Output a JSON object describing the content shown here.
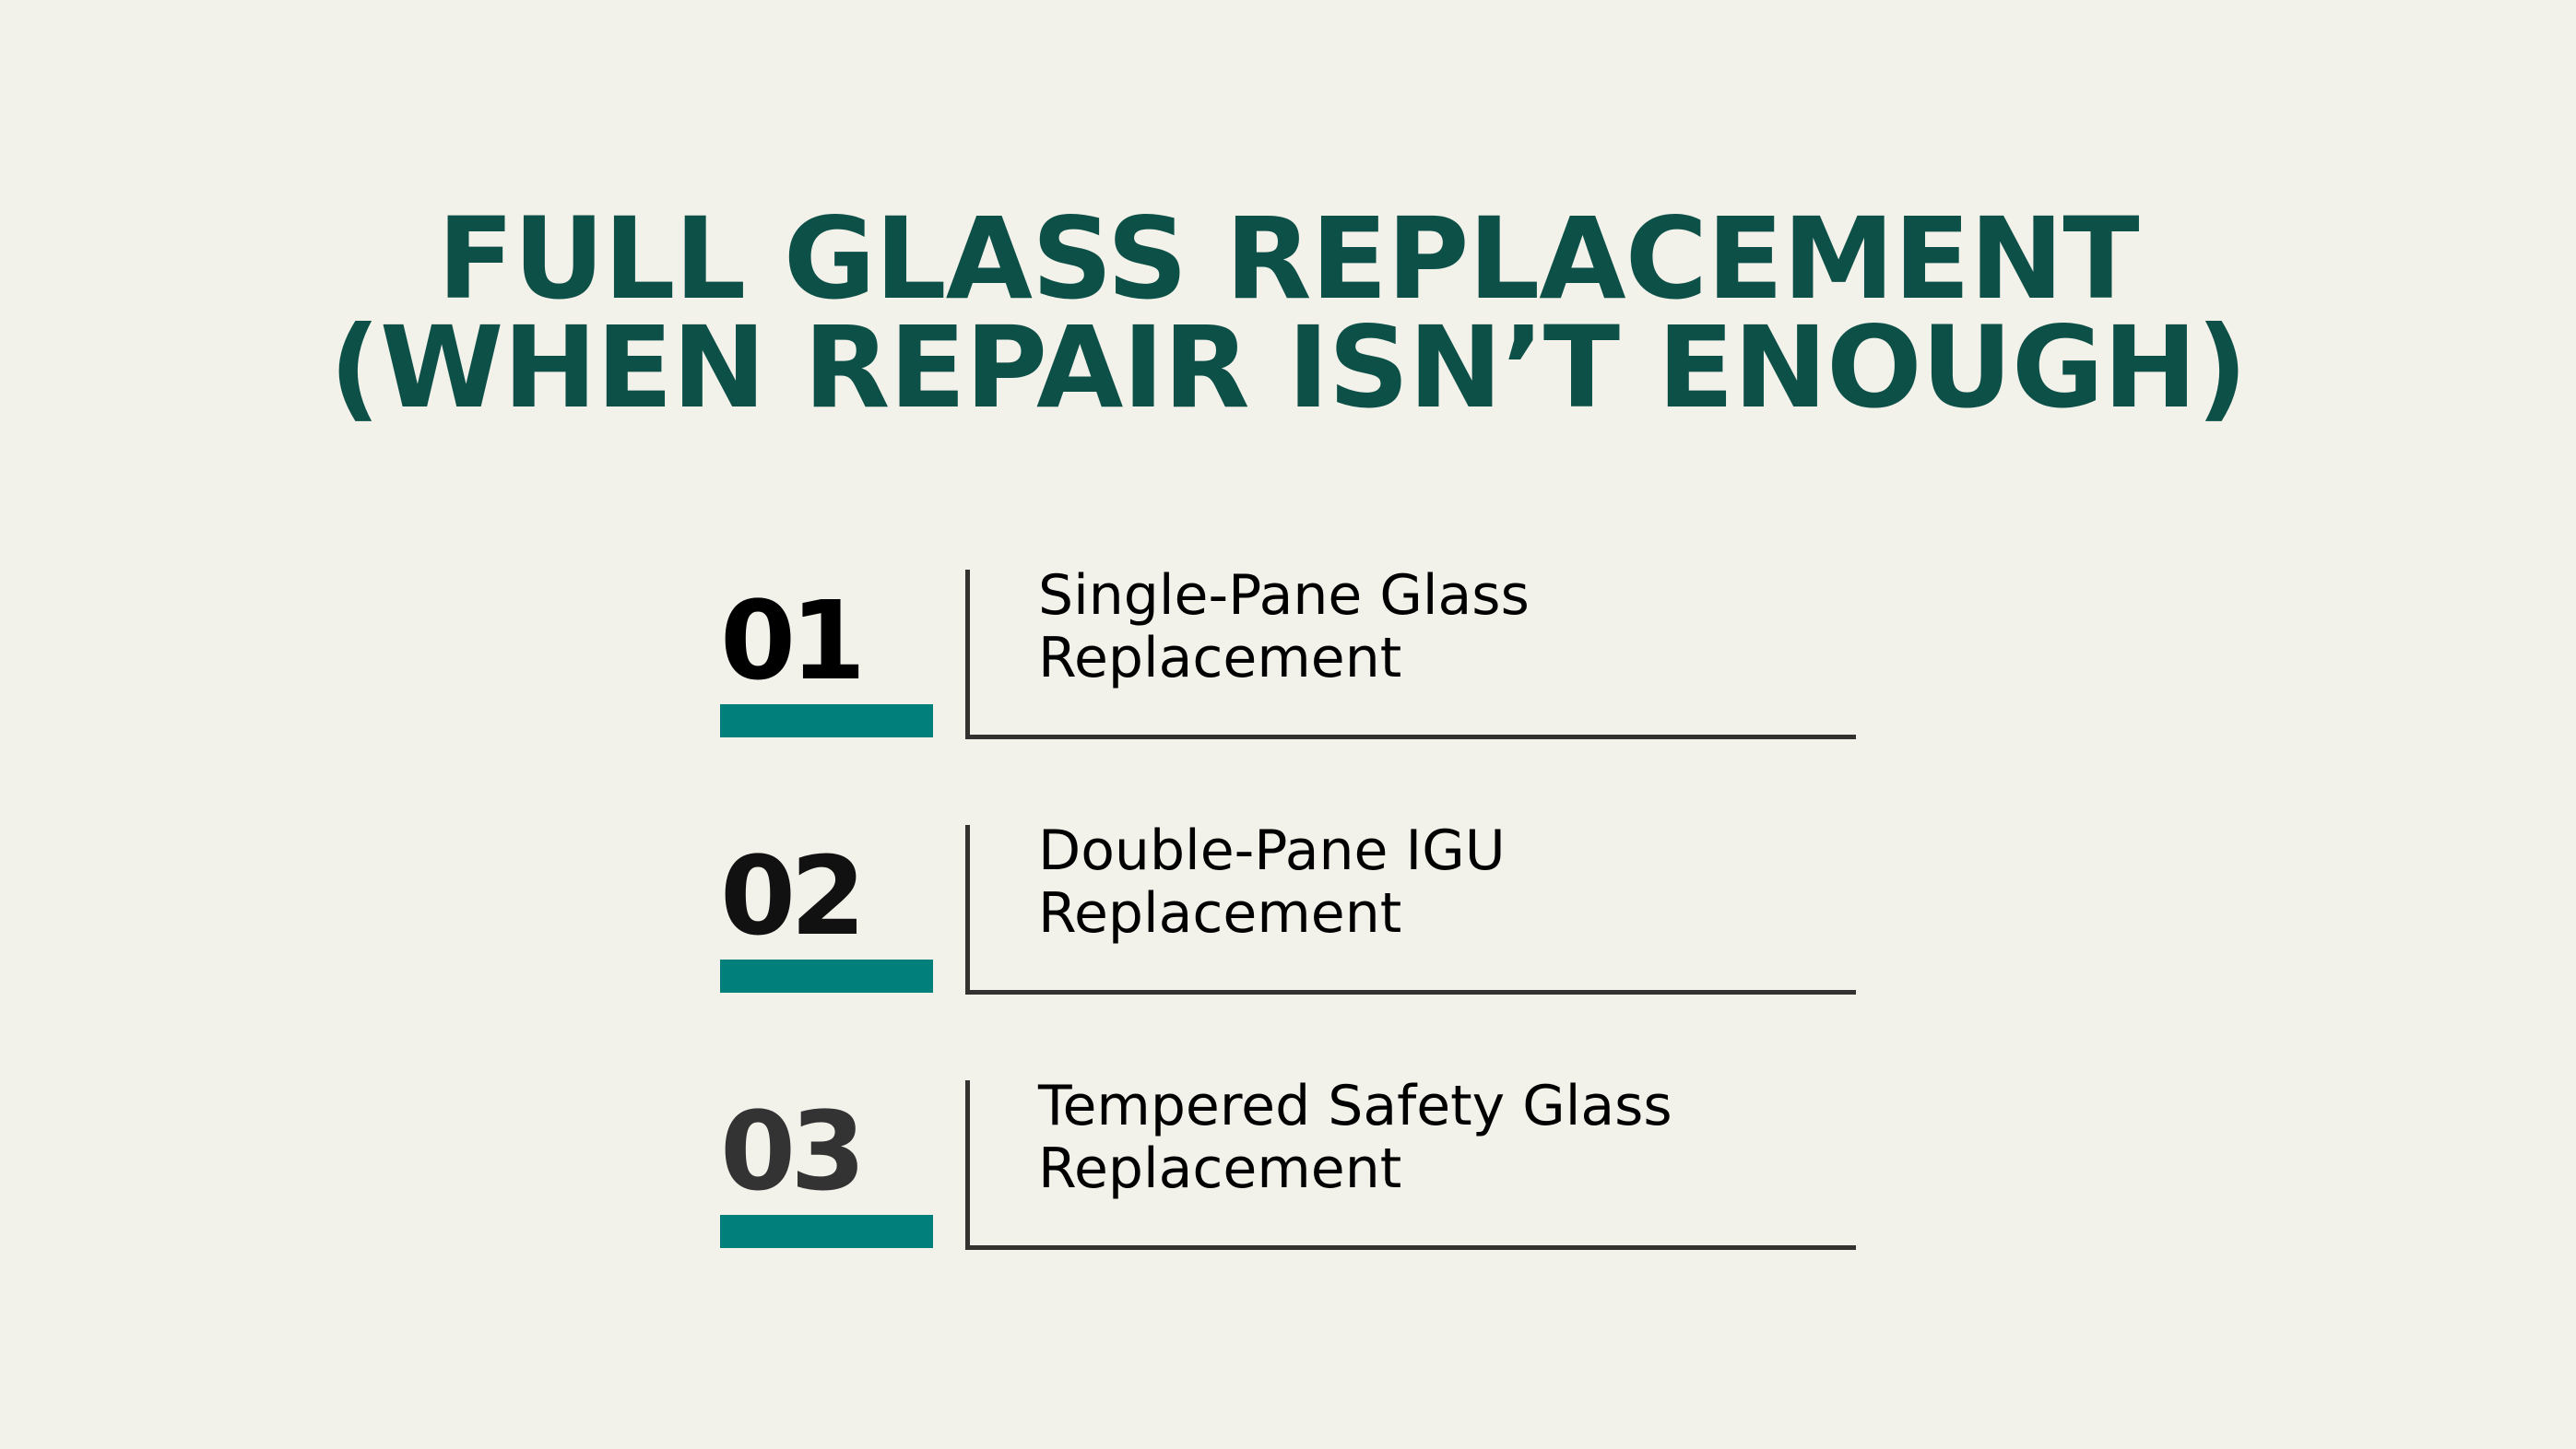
{
  "title": {
    "line1": "FULL GLASS REPLACEMENT",
    "line2": "(WHEN REPAIR ISN’T ENOUGH)"
  },
  "colors": {
    "background": "#f2f1ea",
    "title": "#0d5048",
    "accent_bar": "#007f7b",
    "rule": "#333230"
  },
  "items": [
    {
      "number": "01",
      "line1": "Single-Pane Glass",
      "line2": "Replacement",
      "number_color": "#000000"
    },
    {
      "number": "02",
      "line1": "Double-Pane IGU",
      "line2": "Replacement",
      "number_color": "#111111"
    },
    {
      "number": "03",
      "line1": "Tempered Safety Glass",
      "line2": "Replacement",
      "number_color": "#333333"
    }
  ]
}
